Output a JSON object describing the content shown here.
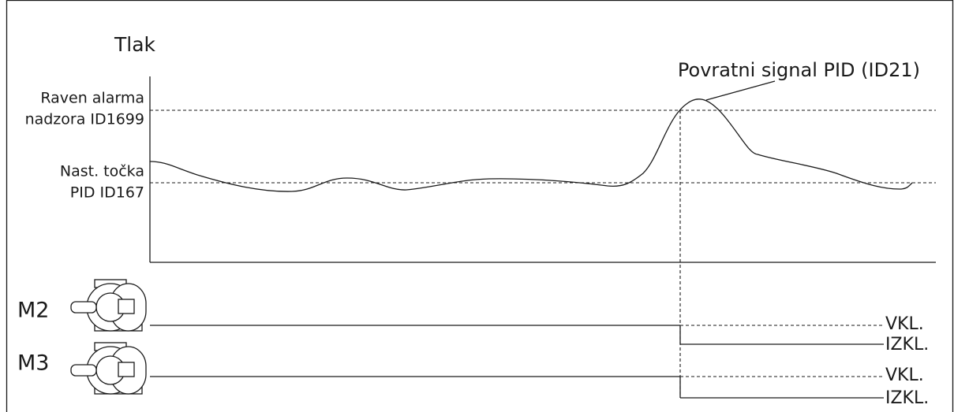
{
  "axis_label": "Tlak",
  "curve_label": "Povratni signal PID (ID21)",
  "levels": [
    {
      "lines": [
        "Raven alarma",
        "nadzora ID1699"
      ]
    },
    {
      "lines": [
        "Nast. točka",
        "PID ID167"
      ]
    }
  ],
  "motors": [
    {
      "name": "M2",
      "on": "VKL.",
      "off": "IZKL."
    },
    {
      "name": "M3",
      "on": "VKL.",
      "off": "IZKL."
    }
  ]
}
